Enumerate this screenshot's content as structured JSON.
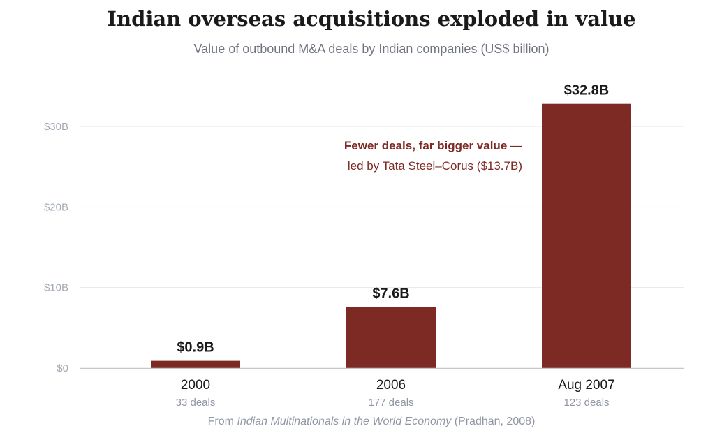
{
  "chart_data": {
    "type": "bar",
    "title": "Indian overseas acquisitions exploded in value",
    "subtitle": "Value of outbound M&A deals by Indian companies (US$ billion)",
    "categories": [
      "2000",
      "2006",
      "Aug 2007"
    ],
    "category_sublabels": [
      "33 deals",
      "177 deals",
      "123 deals"
    ],
    "deal_counts": [
      33,
      177,
      123
    ],
    "values": [
      0.9,
      7.6,
      32.8
    ],
    "value_labels": [
      "$0.9B",
      "$7.6B",
      "$32.8B"
    ],
    "ylim": [
      0,
      35
    ],
    "yticks": [
      0,
      10,
      20,
      30
    ],
    "ytick_labels": [
      "$0",
      "$10B",
      "$20B",
      "$30B"
    ],
    "grid": true,
    "annotation": {
      "line1": "Fewer deals, far bigger value —",
      "line2": "led by Tata Steel–Corus ($13.7B)"
    },
    "colors": {
      "bar": "#7d2a24",
      "annotation": "#7d2a24",
      "grid": "#e6e7ea",
      "axis": "#c4c7cd"
    }
  },
  "source": {
    "prefix": "From ",
    "work": "Indian Multinationals in the World Economy",
    "suffix": " (Pradhan, 2008)"
  }
}
